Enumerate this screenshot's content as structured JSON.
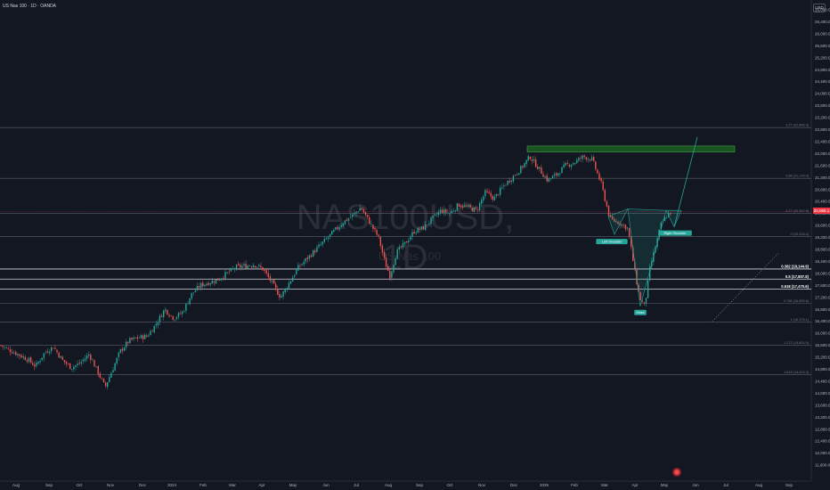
{
  "header": {
    "symbol_title": "US Nas 100 · 1D · OANDA",
    "currency": "USD"
  },
  "watermark": {
    "symbol": "NAS100USD, 1D",
    "description": "US Nas 100"
  },
  "last_price": "20,066.1",
  "chart_data": {
    "type": "candlestick",
    "title": "US Nas 100 · 1D · OANDA",
    "xlabel": "",
    "ylabel": "",
    "ylim": [
      11200,
      27200
    ],
    "y_ticks": [
      11600,
      12000,
      12400,
      12800,
      13200,
      13600,
      14000,
      14400,
      14800,
      15200,
      15600,
      16000,
      16400,
      16800,
      17200,
      17600,
      18000,
      18400,
      18800,
      19200,
      19600,
      20000,
      20400,
      20800,
      21200,
      21600,
      22000,
      22400,
      22800,
      23200,
      23600,
      24000,
      24400,
      24800,
      25200,
      25600,
      26000,
      26400,
      26800
    ],
    "y_tick_labels": [
      "11,600.0",
      "12,000.0",
      "12,400.0",
      "12,800.0",
      "13,200.0",
      "13,600.0",
      "14,000.0",
      "14,400.0",
      "14,800.0",
      "15,200.0",
      "15,600.0",
      "16,000.0",
      "16,400.0",
      "16,800.0",
      "17,200.0",
      "17,600.0",
      "18,000.0",
      "18,400.0",
      "18,800.0",
      "19,200.0",
      "19,600.0",
      "20,000.0",
      "20,400.0",
      "20,800.0",
      "21,200.0",
      "21,600.0",
      "22,000.0",
      "22,400.0",
      "22,800.0",
      "23,200.0",
      "23,600.0",
      "24,000.0",
      "24,400.0",
      "24,800.0",
      "25,200.0",
      "25,600.0",
      "26,000.0",
      "26,400.0",
      "26,800.0"
    ],
    "x_labels": [
      "Aug",
      "Sep",
      "Oct",
      "Nov",
      "Dec",
      "2024",
      "Feb",
      "Mar",
      "Apr",
      "May",
      "Jun",
      "Jul",
      "Aug",
      "Sep",
      "Oct",
      "Nov",
      "Dec",
      "2025",
      "Feb",
      "Mar",
      "Apr",
      "May",
      "Jun",
      "Jul",
      "Aug",
      "Sep"
    ],
    "close_path": [
      [
        0,
        15600
      ],
      [
        10,
        15450
      ],
      [
        20,
        15300
      ],
      [
        30,
        15150
      ],
      [
        40,
        14900
      ],
      [
        50,
        15350
      ],
      [
        60,
        15550
      ],
      [
        70,
        15100
      ],
      [
        80,
        14850
      ],
      [
        90,
        15000
      ],
      [
        100,
        15300
      ],
      [
        110,
        14700
      ],
      [
        118,
        14200
      ],
      [
        125,
        14700
      ],
      [
        135,
        15400
      ],
      [
        145,
        15750
      ],
      [
        155,
        15850
      ],
      [
        165,
        15900
      ],
      [
        175,
        16300
      ],
      [
        185,
        16800
      ],
      [
        195,
        16500
      ],
      [
        205,
        16700
      ],
      [
        215,
        17300
      ],
      [
        225,
        17600
      ],
      [
        235,
        17700
      ],
      [
        245,
        17800
      ],
      [
        255,
        18000
      ],
      [
        265,
        18200
      ],
      [
        275,
        18250
      ],
      [
        285,
        18300
      ],
      [
        295,
        18150
      ],
      [
        305,
        17700
      ],
      [
        315,
        17200
      ],
      [
        325,
        17700
      ],
      [
        335,
        18200
      ],
      [
        345,
        18500
      ],
      [
        355,
        18800
      ],
      [
        365,
        19100
      ],
      [
        375,
        19400
      ],
      [
        385,
        19700
      ],
      [
        395,
        19900
      ],
      [
        405,
        20200
      ],
      [
        415,
        19700
      ],
      [
        425,
        19200
      ],
      [
        432,
        18400
      ],
      [
        438,
        17900
      ],
      [
        445,
        18700
      ],
      [
        455,
        19000
      ],
      [
        465,
        19400
      ],
      [
        475,
        19500
      ],
      [
        485,
        19800
      ],
      [
        495,
        20100
      ],
      [
        505,
        20000
      ],
      [
        515,
        20300
      ],
      [
        525,
        20200
      ],
      [
        535,
        20100
      ],
      [
        545,
        20700
      ],
      [
        555,
        20500
      ],
      [
        565,
        20900
      ],
      [
        575,
        21200
      ],
      [
        585,
        21500
      ],
      [
        595,
        21900
      ],
      [
        605,
        21500
      ],
      [
        615,
        21100
      ],
      [
        625,
        21300
      ],
      [
        635,
        21600
      ],
      [
        645,
        21700
      ],
      [
        655,
        21900
      ],
      [
        665,
        21800
      ],
      [
        675,
        21000
      ],
      [
        685,
        19800
      ],
      [
        695,
        19700
      ],
      [
        705,
        19500
      ],
      [
        712,
        18200
      ],
      [
        718,
        17200
      ],
      [
        724,
        16900
      ],
      [
        730,
        18200
      ],
      [
        736,
        18900
      ],
      [
        742,
        19600
      ],
      [
        748,
        19900
      ],
      [
        754,
        20066.1
      ]
    ],
    "series": [
      {
        "name": "Left Shoulder",
        "type": "label"
      },
      {
        "name": "Head",
        "type": "label"
      },
      {
        "name": "Right Shoulder",
        "type": "label"
      }
    ],
    "fib_levels": [
      {
        "label": "1.27 (22,865.3)",
        "value": 22865.3
      },
      {
        "label": "0.88 (21,170.4)",
        "value": 21170.4
      },
      {
        "label": "0.27 (20,007.9)",
        "value": 20007.9
      },
      {
        "label": "0 (19,226.4)",
        "value": 19226.4
      },
      {
        "label": "0.382 (18,144.9)",
        "value": 18144.9,
        "emphasis": true
      },
      {
        "label": "0.5 (17,807.8)",
        "value": 17807.8,
        "emphasis": true
      },
      {
        "label": "0.618 (17,470.6)",
        "value": 17470.6,
        "emphasis": true
      },
      {
        "label": "0.786 (16,990.6)",
        "value": 16990.6
      },
      {
        "label": "1 (16,379.1)",
        "value": 16379.1
      },
      {
        "label": "1.272 (15,601.9)",
        "value": 15601.9
      },
      {
        "label": "1.618 (14,613.3)",
        "value": 14613.3
      }
    ],
    "target_zone": [
      22050,
      22250
    ],
    "pattern": {
      "left_shoulder": 19300,
      "head": 16900,
      "right_shoulder": 19550,
      "neckline": 20000
    },
    "projection_target": 22550,
    "flag_icon": "flag-icon",
    "colors": {
      "up": "#26a69a",
      "down": "#ef5350",
      "background": "#131722",
      "grid": "#1e222d",
      "zone": "#1b5e20"
    }
  }
}
